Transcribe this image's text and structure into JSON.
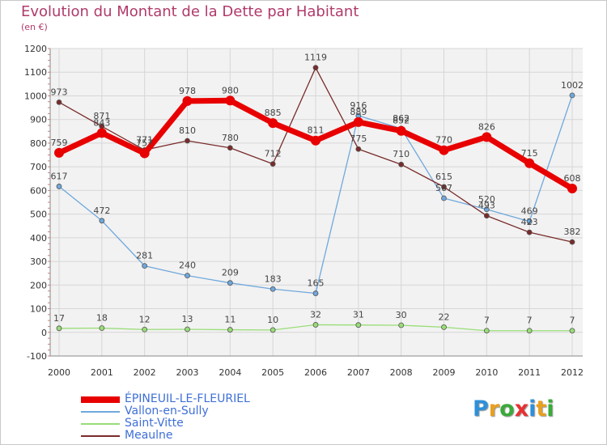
{
  "title": "Evolution du Montant de la Dette par Habitant",
  "subtitle": "(en €)",
  "logo": {
    "text": "Proxiti",
    "letters": [
      {
        "ch": "P",
        "color": "#2f8fd8"
      },
      {
        "ch": "r",
        "color": "#e8a020"
      },
      {
        "ch": "o",
        "color": "#3aaa3a"
      },
      {
        "ch": "x",
        "color": "#e83030"
      },
      {
        "ch": "i",
        "color": "#2f8fd8"
      },
      {
        "ch": "t",
        "color": "#e8a020"
      },
      {
        "ch": "i",
        "color": "#3aaa3a"
      }
    ]
  },
  "chart_data": {
    "type": "line",
    "title": "Evolution du Montant de la Dette par Habitant",
    "ylabel": "(en €)",
    "x": [
      2000,
      2001,
      2002,
      2003,
      2004,
      2005,
      2006,
      2007,
      2008,
      2009,
      2010,
      2011,
      2012
    ],
    "ylim": [
      -100,
      1200
    ],
    "yticks": [
      -100,
      0,
      100,
      200,
      300,
      400,
      500,
      600,
      700,
      800,
      900,
      1000,
      1100,
      1200
    ],
    "grid": true,
    "legend_position": "bottom-left",
    "series": [
      {
        "name": "ÉPINEUIL-LE-FLEURIEL",
        "color": "#e80000",
        "width": 7,
        "marker": 6,
        "values": [
          759,
          843,
          757,
          978,
          980,
          885,
          811,
          889,
          852,
          770,
          826,
          715,
          608
        ]
      },
      {
        "name": "Vallon-en-Sully",
        "color": "#6fa8dc",
        "width": 1.3,
        "marker": 3,
        "values": [
          617,
          472,
          281,
          240,
          209,
          183,
          165,
          916,
          862,
          567,
          520,
          469,
          1002
        ]
      },
      {
        "name": "Saint-Vitte",
        "color": "#99dd77",
        "width": 1.3,
        "marker": 3,
        "values": [
          17,
          18,
          12,
          13,
          11,
          10,
          32,
          31,
          30,
          22,
          7,
          7,
          7
        ]
      },
      {
        "name": "Meaulne",
        "color": "#7a2a2a",
        "width": 1.3,
        "marker": 3,
        "values": [
          973,
          871,
          771,
          810,
          780,
          712,
          1119,
          775,
          710,
          615,
          493,
          423,
          382
        ]
      }
    ],
    "point_labels": {
      "ÉPINEUIL-LE-FLEURIEL": [
        "759",
        "843",
        "757",
        "978",
        "980",
        "885",
        "811",
        "889",
        "852",
        "770",
        "826",
        "715",
        "608"
      ],
      "Vallon-en-Sully": [
        "617",
        "472",
        "281",
        "240",
        "209",
        "183",
        "165",
        "916",
        "862",
        "567",
        "520",
        "469",
        "1002"
      ],
      "Saint-Vitte": [
        "17",
        "18",
        "12",
        "13",
        "11",
        "10",
        "32",
        "31",
        "30",
        "22",
        "7",
        "7",
        "7"
      ],
      "Meaulne": [
        "973",
        "871",
        "771",
        "810",
        "780",
        "712",
        "1119",
        "775",
        "710",
        "615",
        "493",
        "423",
        "382"
      ]
    }
  }
}
